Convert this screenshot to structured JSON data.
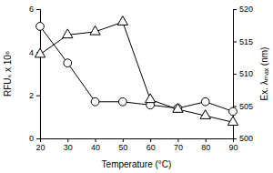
{
  "chart_data": {
    "type": "line",
    "x_label": "Temperature (°C)",
    "y_label": "RFUₛ x 10⁶",
    "y2_label": "Ex. λₘₐₓ (nm)",
    "x": [
      20,
      30,
      40,
      50,
      60,
      70,
      80,
      90
    ],
    "xlim": [
      20,
      90
    ],
    "xticks": [
      20,
      30,
      40,
      50,
      60,
      70,
      80,
      90
    ],
    "ylim": [
      0,
      6
    ],
    "yticks": [
      0,
      2,
      4,
      6
    ],
    "y2lim": [
      500,
      520
    ],
    "y2ticks": [
      500,
      505,
      510,
      515,
      520
    ],
    "series": [
      {
        "color": "#000000",
        "marker": "circle",
        "axis": "y",
        "values": [
          5.2,
          3.5,
          1.7,
          1.7,
          1.55,
          1.4,
          1.7,
          1.25
        ]
      },
      {
        "color": "#000000",
        "marker": "triangle",
        "axis": "y2",
        "values": [
          513,
          516,
          516.5,
          518,
          506,
          504.5,
          503.5,
          502.5
        ]
      }
    ]
  }
}
